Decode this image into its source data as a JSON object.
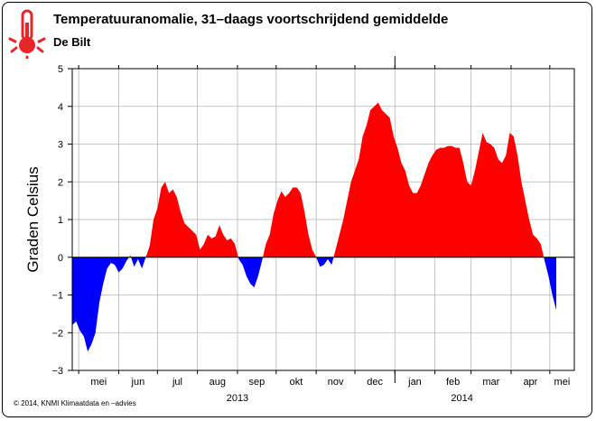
{
  "header": {
    "title": "Temperatuuranomalie, 31–daags voortschrijdend gemiddelde",
    "subtitle": "De Bilt"
  },
  "footer": {
    "credit": "© 2014, KNMI Klimaatdata en –advies"
  },
  "icon": {
    "name": "thermometer-icon",
    "color": "#e8262a"
  },
  "colors": {
    "positive": "#ff0000",
    "negative": "#0000ff"
  },
  "chart_data": {
    "type": "area",
    "title": "Temperatuuranomalie, 31–daags voortschrijdend gemiddelde",
    "subtitle": "De Bilt",
    "xlabel": "",
    "ylabel": "Graden Celsius",
    "ylim": [
      -3,
      5
    ],
    "yticks": [
      5,
      4,
      3,
      2,
      1,
      0,
      -1,
      -2,
      -3
    ],
    "grid": true,
    "xlim": [
      "2013-04-26",
      "2014-05-20"
    ],
    "months": [
      {
        "label": "mei",
        "date": "2013-05-01"
      },
      {
        "label": "jun",
        "date": "2013-06-01"
      },
      {
        "label": "jul",
        "date": "2013-07-01"
      },
      {
        "label": "aug",
        "date": "2013-08-01"
      },
      {
        "label": "sep",
        "date": "2013-09-01"
      },
      {
        "label": "okt",
        "date": "2013-10-01"
      },
      {
        "label": "nov",
        "date": "2013-11-01"
      },
      {
        "label": "dec",
        "date": "2013-12-01"
      },
      {
        "label": "jan",
        "date": "2014-01-01"
      },
      {
        "label": "feb",
        "date": "2014-02-01"
      },
      {
        "label": "mar",
        "date": "2014-03-01"
      },
      {
        "label": "apr",
        "date": "2014-04-01"
      },
      {
        "label": "mei",
        "date": "2014-05-01"
      }
    ],
    "years": [
      {
        "label": "2013",
        "date": "2013-09-01"
      },
      {
        "label": "2014",
        "date": "2014-02-22"
      }
    ],
    "year_boundary": "2014-01-01",
    "series": [
      {
        "values": [
          [
            "2013-04-26",
            -1.8
          ],
          [
            "2013-04-29",
            -1.7
          ],
          [
            "2013-05-02",
            -1.95
          ],
          [
            "2013-05-05",
            -2.1
          ],
          [
            "2013-05-08",
            -2.5
          ],
          [
            "2013-05-11",
            -2.3
          ],
          [
            "2013-05-14",
            -2.0
          ],
          [
            "2013-05-17",
            -1.2
          ],
          [
            "2013-05-20",
            -0.7
          ],
          [
            "2013-05-23",
            -0.3
          ],
          [
            "2013-05-26",
            -0.15
          ],
          [
            "2013-05-29",
            -0.2
          ],
          [
            "2013-06-01",
            -0.4
          ],
          [
            "2013-06-04",
            -0.3
          ],
          [
            "2013-06-07",
            -0.1
          ],
          [
            "2013-06-10",
            0.05
          ],
          [
            "2013-06-13",
            -0.25
          ],
          [
            "2013-06-16",
            -0.05
          ],
          [
            "2013-06-19",
            -0.3
          ],
          [
            "2013-06-22",
            0.0
          ],
          [
            "2013-06-25",
            0.3
          ],
          [
            "2013-06-28",
            1.0
          ],
          [
            "2013-07-01",
            1.3
          ],
          [
            "2013-07-04",
            1.85
          ],
          [
            "2013-07-07",
            2.0
          ],
          [
            "2013-07-10",
            1.7
          ],
          [
            "2013-07-13",
            1.8
          ],
          [
            "2013-07-16",
            1.6
          ],
          [
            "2013-07-19",
            1.2
          ],
          [
            "2013-07-22",
            0.9
          ],
          [
            "2013-07-25",
            0.8
          ],
          [
            "2013-07-28",
            0.7
          ],
          [
            "2013-07-31",
            0.6
          ],
          [
            "2013-08-03",
            0.2
          ],
          [
            "2013-08-06",
            0.35
          ],
          [
            "2013-08-09",
            0.6
          ],
          [
            "2013-08-12",
            0.5
          ],
          [
            "2013-08-15",
            0.55
          ],
          [
            "2013-08-18",
            0.85
          ],
          [
            "2013-08-21",
            0.6
          ],
          [
            "2013-08-24",
            0.45
          ],
          [
            "2013-08-27",
            0.5
          ],
          [
            "2013-08-30",
            0.35
          ],
          [
            "2013-09-02",
            -0.05
          ],
          [
            "2013-09-05",
            -0.2
          ],
          [
            "2013-09-08",
            -0.5
          ],
          [
            "2013-09-11",
            -0.7
          ],
          [
            "2013-09-14",
            -0.8
          ],
          [
            "2013-09-17",
            -0.5
          ],
          [
            "2013-09-20",
            -0.1
          ],
          [
            "2013-09-23",
            0.35
          ],
          [
            "2013-09-26",
            0.6
          ],
          [
            "2013-09-29",
            1.15
          ],
          [
            "2013-10-02",
            1.5
          ],
          [
            "2013-10-05",
            1.75
          ],
          [
            "2013-10-08",
            1.6
          ],
          [
            "2013-10-11",
            1.7
          ],
          [
            "2013-10-14",
            1.85
          ],
          [
            "2013-10-17",
            1.85
          ],
          [
            "2013-10-20",
            1.7
          ],
          [
            "2013-10-23",
            1.2
          ],
          [
            "2013-10-26",
            0.6
          ],
          [
            "2013-10-29",
            0.2
          ],
          [
            "2013-11-01",
            0.0
          ],
          [
            "2013-11-04",
            -0.25
          ],
          [
            "2013-11-07",
            -0.2
          ],
          [
            "2013-11-10",
            -0.05
          ],
          [
            "2013-11-13",
            -0.2
          ],
          [
            "2013-11-16",
            0.2
          ],
          [
            "2013-11-19",
            0.6
          ],
          [
            "2013-11-22",
            1.0
          ],
          [
            "2013-11-25",
            1.5
          ],
          [
            "2013-11-28",
            2.0
          ],
          [
            "2013-12-01",
            2.3
          ],
          [
            "2013-12-04",
            2.6
          ],
          [
            "2013-12-07",
            3.2
          ],
          [
            "2013-12-10",
            3.5
          ],
          [
            "2013-12-13",
            3.9
          ],
          [
            "2013-12-16",
            4.0
          ],
          [
            "2013-12-19",
            4.1
          ],
          [
            "2013-12-22",
            3.9
          ],
          [
            "2013-12-25",
            3.8
          ],
          [
            "2013-12-28",
            3.7
          ],
          [
            "2013-12-31",
            3.2
          ],
          [
            "2014-01-03",
            2.9
          ],
          [
            "2014-01-06",
            2.5
          ],
          [
            "2014-01-09",
            2.3
          ],
          [
            "2014-01-12",
            1.9
          ],
          [
            "2014-01-15",
            1.7
          ],
          [
            "2014-01-18",
            1.7
          ],
          [
            "2014-01-21",
            1.9
          ],
          [
            "2014-01-24",
            2.2
          ],
          [
            "2014-01-27",
            2.5
          ],
          [
            "2014-01-30",
            2.7
          ],
          [
            "2014-02-02",
            2.85
          ],
          [
            "2014-02-05",
            2.9
          ],
          [
            "2014-02-08",
            2.9
          ],
          [
            "2014-02-11",
            2.95
          ],
          [
            "2014-02-14",
            2.95
          ],
          [
            "2014-02-17",
            2.9
          ],
          [
            "2014-02-20",
            2.9
          ],
          [
            "2014-02-23",
            2.5
          ],
          [
            "2014-02-26",
            2.0
          ],
          [
            "2014-03-01",
            1.9
          ],
          [
            "2014-03-04",
            2.3
          ],
          [
            "2014-03-07",
            2.8
          ],
          [
            "2014-03-10",
            3.3
          ],
          [
            "2014-03-13",
            3.05
          ],
          [
            "2014-03-16",
            3.0
          ],
          [
            "2014-03-19",
            2.9
          ],
          [
            "2014-03-22",
            2.6
          ],
          [
            "2014-03-25",
            2.5
          ],
          [
            "2014-03-28",
            2.7
          ],
          [
            "2014-03-31",
            3.3
          ],
          [
            "2014-04-03",
            3.2
          ],
          [
            "2014-04-06",
            2.7
          ],
          [
            "2014-04-09",
            2.0
          ],
          [
            "2014-04-12",
            1.5
          ],
          [
            "2014-04-15",
            1.0
          ],
          [
            "2014-04-18",
            0.6
          ],
          [
            "2014-04-21",
            0.5
          ],
          [
            "2014-04-24",
            0.35
          ],
          [
            "2014-04-27",
            -0.1
          ],
          [
            "2014-04-30",
            -0.5
          ],
          [
            "2014-05-03",
            -1.0
          ],
          [
            "2014-05-06",
            -1.4
          ]
        ]
      }
    ]
  }
}
